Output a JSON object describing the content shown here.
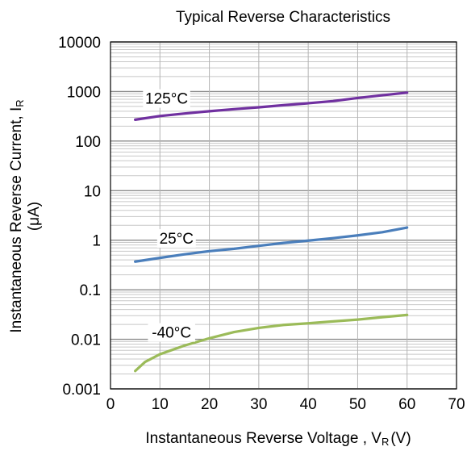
{
  "chart_data": {
    "type": "line",
    "title": "Typical Reverse Characteristics",
    "xlabel": "Instantaneous Reverse Voltage , V",
    "xlabel_sub": "R",
    "xlabel_unit": "(V)",
    "ylabel_line1": "Instantaneous Reverse Current, I",
    "ylabel_sub": "R",
    "ylabel_line2": "(μA)",
    "x_scale": "linear",
    "y_scale": "log",
    "xlim": [
      0,
      70
    ],
    "ylim": [
      0.001,
      10000
    ],
    "x_ticks": [
      "0",
      "10",
      "20",
      "30",
      "40",
      "50",
      "60",
      "70"
    ],
    "y_ticks": [
      "0.001",
      "0.01",
      "0.1",
      "1",
      "10",
      "100",
      "1000",
      "10000"
    ],
    "grid": true,
    "series": [
      {
        "name": "125°C",
        "color": "#7030a0",
        "x": [
          5,
          10,
          15,
          20,
          25,
          30,
          35,
          40,
          45,
          50,
          55,
          60
        ],
        "y": [
          270,
          320,
          360,
          400,
          440,
          480,
          530,
          580,
          640,
          740,
          840,
          950
        ]
      },
      {
        "name": "25°C",
        "color": "#4a7ebb",
        "x": [
          5,
          10,
          15,
          20,
          25,
          30,
          35,
          40,
          45,
          50,
          55,
          60
        ],
        "y": [
          0.37,
          0.44,
          0.52,
          0.6,
          0.67,
          0.77,
          0.88,
          0.98,
          1.1,
          1.25,
          1.45,
          1.8
        ]
      },
      {
        "name": "-40°C",
        "color": "#9bbb59",
        "x": [
          5,
          7,
          10,
          15,
          20,
          25,
          30,
          35,
          40,
          45,
          50,
          55,
          60
        ],
        "y": [
          0.0023,
          0.0035,
          0.005,
          0.0075,
          0.0105,
          0.014,
          0.017,
          0.0195,
          0.021,
          0.023,
          0.025,
          0.028,
          0.031
        ]
      }
    ]
  }
}
